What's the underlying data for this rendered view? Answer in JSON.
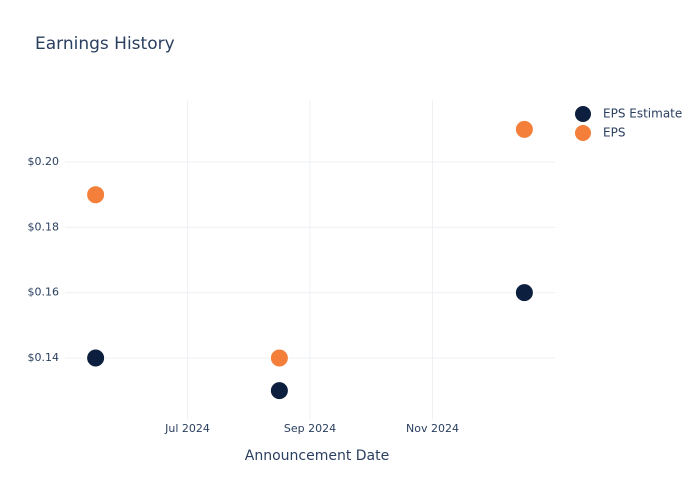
{
  "chart_data": {
    "type": "scatter",
    "title": "Earnings History",
    "x_label": "Announcement Date",
    "x": [
      "2024-05",
      "2024-08",
      "2024-12"
    ],
    "series": [
      {
        "name": "EPS Estimate",
        "color": "#0c1f3f",
        "values": [
          0.14,
          0.13,
          0.16
        ]
      },
      {
        "name": "EPS",
        "color": "#f37f3a",
        "values": [
          0.19,
          0.14,
          0.21
        ]
      }
    ],
    "xlim": [
      "2024-05",
      "2024-12"
    ],
    "xticks": [
      {
        "value": "2024-07",
        "label": "Jul 2024"
      },
      {
        "value": "2024-09",
        "label": "Sep 2024"
      },
      {
        "value": "2024-11",
        "label": "Nov 2024"
      }
    ],
    "ylim": [
      0.121,
      0.219
    ],
    "yticks": [
      {
        "value": 0.14,
        "label": "$0.14"
      },
      {
        "value": 0.16,
        "label": "$0.16"
      },
      {
        "value": 0.18,
        "label": "$0.18"
      },
      {
        "value": 0.2,
        "label": "$0.20"
      }
    ],
    "grid": true
  }
}
